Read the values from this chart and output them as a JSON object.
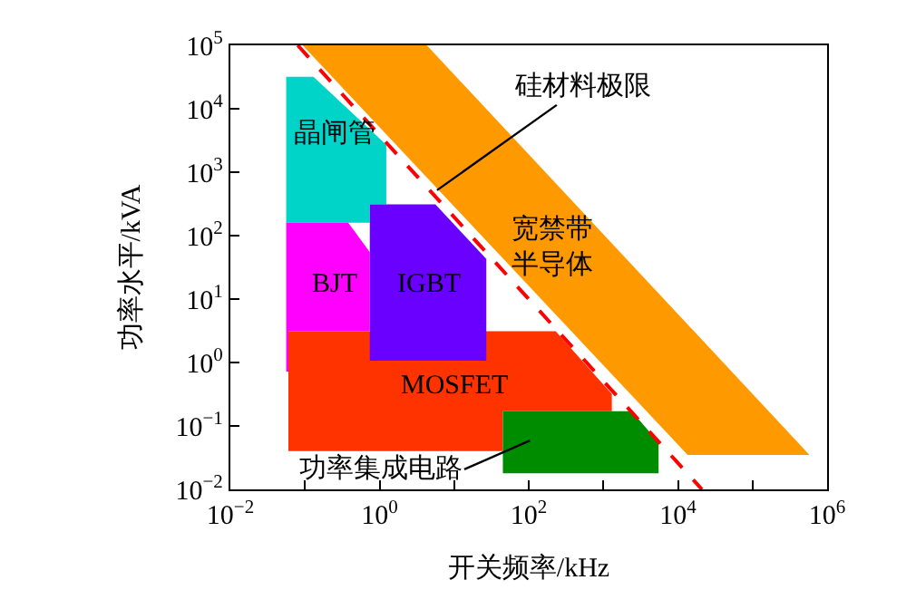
{
  "chart_data": {
    "type": "area",
    "xlabel": "开关频率/kHz",
    "ylabel": "功率水平/kVA",
    "log": "xy",
    "legend": false,
    "marker": "none",
    "xlim": [
      0.01,
      1000000
    ],
    "ylim": [
      0.01,
      100000
    ],
    "xticks": [
      {
        "value": 0.01,
        "label": "10$^{−2}$"
      },
      {
        "value": 0.1,
        "label": null
      },
      {
        "value": 1,
        "label": "10$^{0}$"
      },
      {
        "value": 10,
        "label": null
      },
      {
        "value": 100,
        "label": "10$^{2}$"
      },
      {
        "value": 1000,
        "label": null
      },
      {
        "value": 10000,
        "label": "10$^{4}$"
      },
      {
        "value": 100000,
        "label": null
      },
      {
        "value": 1000000,
        "label": "10$^{6}$"
      }
    ],
    "yticks": [
      {
        "value": 0.01,
        "label": "10$^{−2}$"
      },
      {
        "value": 0.1,
        "label": "10$^{−1}$"
      },
      {
        "value": 1,
        "label": "10$^{0}$"
      },
      {
        "value": 10,
        "label": "10$^{1}$"
      },
      {
        "value": 100,
        "label": "10$^{2}$"
      },
      {
        "value": 1000,
        "label": "10$^{3}$"
      },
      {
        "value": 10000,
        "label": "10$^{4}$"
      },
      {
        "value": 100000,
        "label": "10$^{5}$"
      }
    ],
    "series": [
      {
        "color": "#ff9900",
        "x": [
          0.093,
          4.3,
          580000,
          13500
        ],
        "values": [
          100000,
          100000,
          0.035,
          0.035
        ]
      },
      {
        "color": "#00d4c8",
        "x": [
          0.056,
          0.13,
          1.23,
          1.23,
          0.74,
          0.74,
          0.056
        ],
        "values": [
          32000,
          32000,
          2700,
          310,
          310,
          160,
          160
        ]
      },
      {
        "color": "#ff00ff",
        "x": [
          0.056,
          0.38,
          0.74,
          0.74,
          0.06,
          0.06,
          0.056
        ],
        "values": [
          160,
          160,
          55,
          3.1,
          3.1,
          0.72,
          0.72
        ]
      },
      {
        "color": "#ff3300",
        "x": [
          0.06,
          230,
          1300,
          1300,
          45,
          45,
          0.06
        ],
        "values": [
          3.1,
          3.1,
          0.32,
          0.17,
          0.17,
          0.04,
          0.04
        ]
      },
      {
        "color": "#6a00ff",
        "x": [
          0.74,
          5.6,
          27,
          27,
          0.74
        ],
        "values": [
          310,
          310,
          43,
          1.07,
          1.07
        ]
      },
      {
        "color": "#008c00",
        "x": [
          45,
          2400,
          5500,
          5500,
          45
        ],
        "values": [
          0.17,
          0.17,
          0.055,
          0.018,
          0.018
        ]
      },
      {
        "type": "line",
        "color": "#ff0000",
        "line_style": "dashed",
        "x": [
          0.08,
          21000
        ],
        "values": [
          100000,
          0.01
        ]
      }
    ],
    "annotations": [
      "晶闸管",
      "BJT",
      "IGBT",
      "MOSFET",
      "宽禁带半导体",
      {
        "text": "硅材料极限",
        "x": 5.9,
        "y": 520
      },
      "功率集成电路"
    ]
  }
}
